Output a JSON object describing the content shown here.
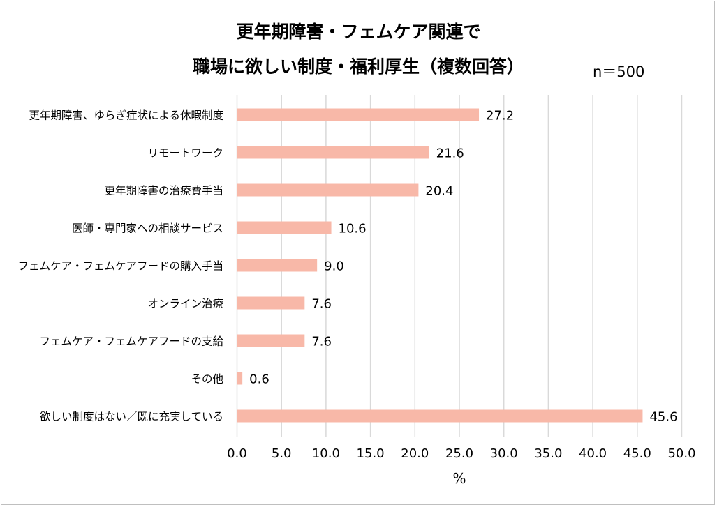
{
  "chart_data": {
    "type": "bar",
    "orientation": "horizontal",
    "title_lines": [
      "更年期障害・フェムケア関連で",
      "職場に欲しい制度・福利厚生（複数回答）"
    ],
    "sample_size_label": "n＝500",
    "xlabel": "%",
    "ylabel": "",
    "xlim": [
      0,
      50
    ],
    "x_ticks": [
      "0.0",
      "5.0",
      "10.0",
      "15.0",
      "20.0",
      "25.0",
      "30.0",
      "35.0",
      "40.0",
      "45.0",
      "50.0"
    ],
    "x_tick_values": [
      0,
      5,
      10,
      15,
      20,
      25,
      30,
      35,
      40,
      45,
      50
    ],
    "grid": "vertical",
    "bar_color": "#f8b8a8",
    "categories": [
      "更年期障害、ゆらぎ症状による休暇制度",
      "リモートワーク",
      "更年期障害の治療費手当",
      "医師・専門家への相談サービス",
      "フェムケア・フェムケアフードの購入手当",
      "オンライン治療",
      "フェムケア・フェムケアフードの支給",
      "その他",
      "欲しい制度はない／既に充実している"
    ],
    "values": [
      27.2,
      21.6,
      20.4,
      10.6,
      9.0,
      7.6,
      7.6,
      0.6,
      45.6
    ],
    "value_labels": [
      "27.2",
      "21.6",
      "20.4",
      "10.6",
      "9.0",
      "7.6",
      "7.6",
      "0.6",
      "45.6"
    ]
  }
}
